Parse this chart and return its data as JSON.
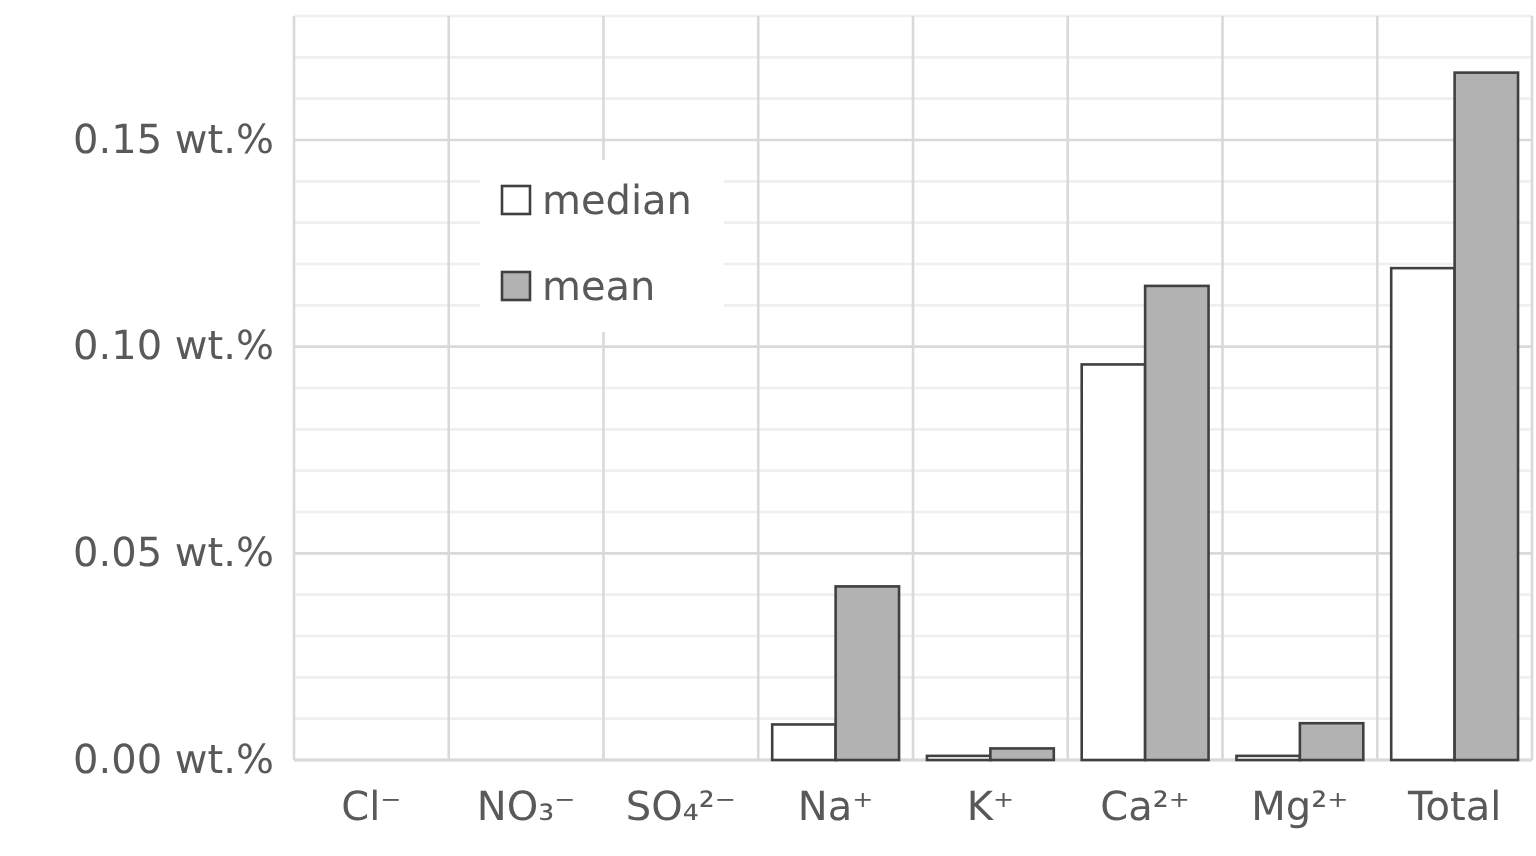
{
  "chart_data": {
    "type": "bar",
    "categories": [
      "Cl⁻",
      "NO₃⁻",
      "SO₄²⁻",
      "Na⁺",
      "K⁺",
      "Ca²⁺",
      "Mg²⁺",
      "Total"
    ],
    "series": [
      {
        "name": "median",
        "color": "#ffffff",
        "values": [
          0,
          0,
          0,
          0.0086,
          0.001,
          0.0957,
          0.001,
          0.119
        ]
      },
      {
        "name": "mean",
        "color": "#b2b2b2",
        "values": [
          0,
          0,
          0,
          0.042,
          0.0028,
          0.1147,
          0.0089,
          0.1663
        ]
      }
    ],
    "ylim": [
      0,
      0.18
    ],
    "yticks": [
      {
        "value": 0,
        "label": "0.00 wt.%"
      },
      {
        "value": 0.01,
        "label": null
      },
      {
        "value": 0.02,
        "label": null
      },
      {
        "value": 0.03,
        "label": null
      },
      {
        "value": 0.04,
        "label": null
      },
      {
        "value": 0.05,
        "label": "0.05 wt.%"
      },
      {
        "value": 0.06,
        "label": null
      },
      {
        "value": 0.07,
        "label": null
      },
      {
        "value": 0.08,
        "label": null
      },
      {
        "value": 0.09,
        "label": null
      },
      {
        "value": 0.1,
        "label": "0.10 wt.%"
      },
      {
        "value": 0.11,
        "label": null
      },
      {
        "value": 0.12,
        "label": null
      },
      {
        "value": 0.13,
        "label": null
      },
      {
        "value": 0.14,
        "label": null
      },
      {
        "value": 0.15,
        "label": "0.15 wt.%"
      },
      {
        "value": 0.16,
        "label": null
      },
      {
        "value": 0.17,
        "label": null
      },
      {
        "value": 0.18,
        "label": null
      }
    ],
    "grid": true,
    "legend": "top left"
  }
}
